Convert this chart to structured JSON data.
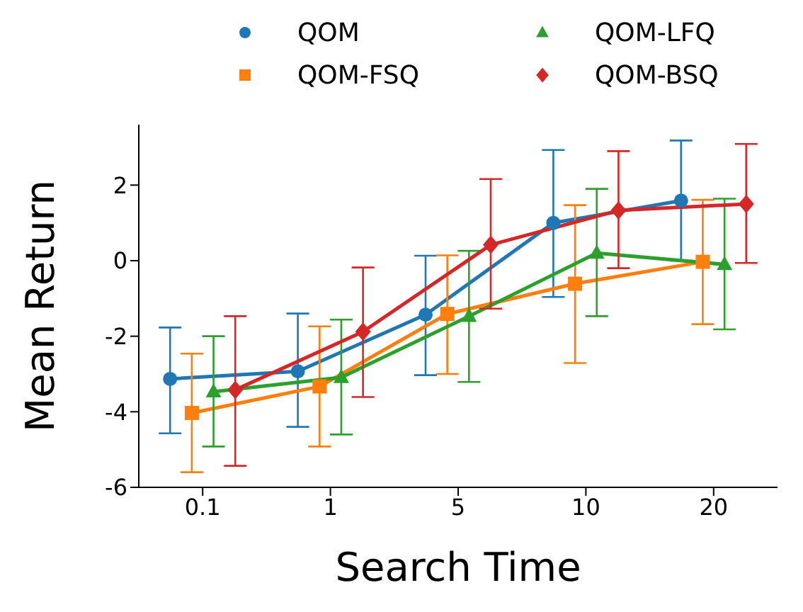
{
  "chart_data": {
    "type": "line",
    "xlabel": "Search Time",
    "ylabel": "Mean Return",
    "categories": [
      "0.1",
      "1",
      "5",
      "10",
      "20"
    ],
    "ylim": [
      -6,
      3.6
    ],
    "yticks": [
      -6,
      -4,
      -2,
      0,
      2
    ],
    "legend": "top",
    "series": [
      {
        "name": "QOM",
        "color": "#1f77b4",
        "marker": "circle",
        "values": [
          -3.13,
          -2.93,
          -1.43,
          1.0,
          1.59
        ],
        "errors": [
          [
            -4.57,
            -1.77
          ],
          [
            -4.4,
            -1.4
          ],
          [
            -3.03,
            0.13
          ],
          [
            -0.96,
            2.93
          ],
          [
            0.0,
            3.18
          ]
        ]
      },
      {
        "name": "QOM-FSQ",
        "color": "#ff7f0e",
        "marker": "square",
        "values": [
          -4.03,
          -3.33,
          -1.41,
          -0.61,
          -0.03
        ],
        "errors": [
          [
            -5.6,
            -2.46
          ],
          [
            -4.92,
            -1.74
          ],
          [
            -3.0,
            0.14
          ],
          [
            -2.71,
            1.47
          ],
          [
            -1.68,
            1.61
          ]
        ]
      },
      {
        "name": "QOM-LFQ",
        "color": "#2ca02c",
        "marker": "triangle",
        "values": [
          -3.47,
          -3.09,
          -1.47,
          0.2,
          -0.1
        ],
        "errors": [
          [
            -4.92,
            -2.0
          ],
          [
            -4.6,
            -1.56
          ],
          [
            -3.21,
            0.26
          ],
          [
            -1.47,
            1.9
          ],
          [
            -1.82,
            1.64
          ]
        ]
      },
      {
        "name": "QOM-BSQ",
        "color": "#d62728",
        "marker": "diamond",
        "values": [
          -3.42,
          -1.88,
          0.42,
          1.33,
          1.5
        ],
        "errors": [
          [
            -5.43,
            -1.47
          ],
          [
            -3.61,
            -0.18
          ],
          [
            -1.27,
            2.16
          ],
          [
            -0.2,
            2.9
          ],
          [
            -0.06,
            3.09
          ]
        ]
      }
    ]
  }
}
